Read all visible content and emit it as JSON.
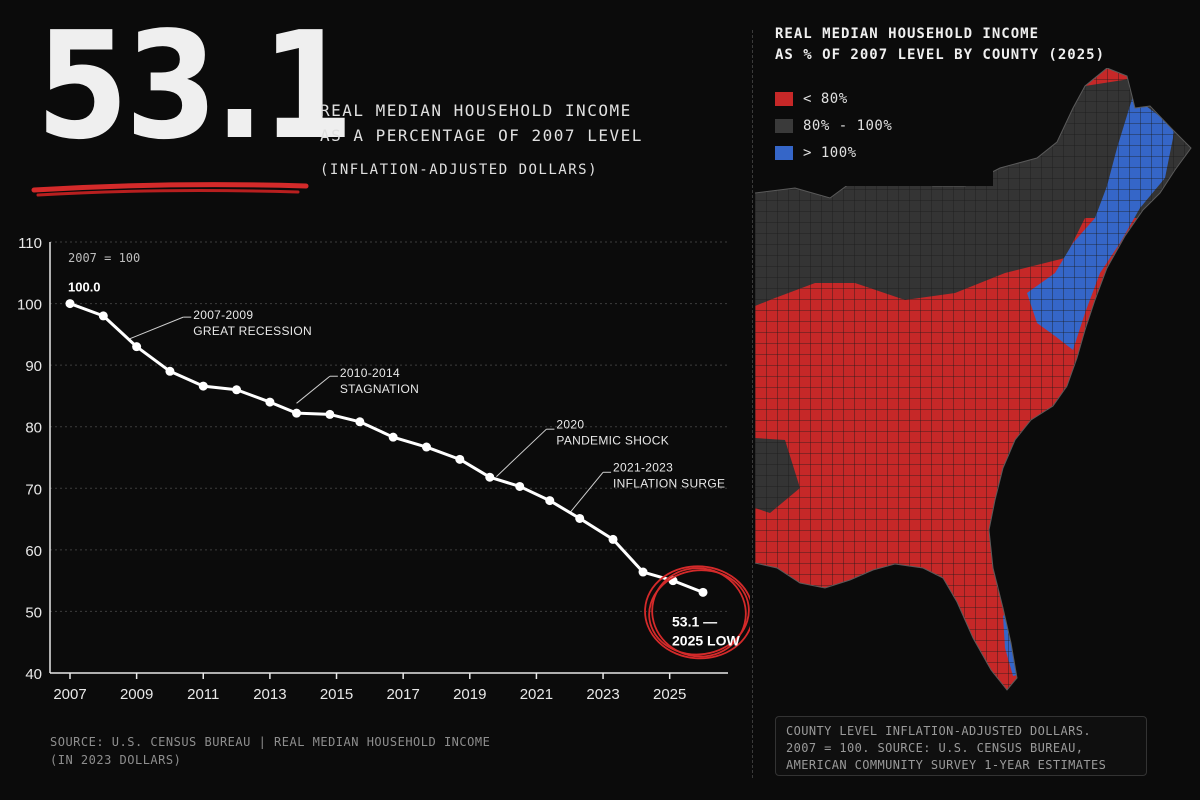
{
  "hero": {
    "value": "53.1",
    "headline_line1": "REAL MEDIAN HOUSEHOLD INCOME",
    "headline_line2": "AS A PERCENTAGE OF 2007 LEVEL",
    "subhead": "(INFLATION-ADJUSTED DOLLARS)"
  },
  "chart_data": {
    "type": "line",
    "title": "",
    "xlabel": "",
    "ylabel": "",
    "xlim": [
      2007,
      2026
    ],
    "ylim": [
      40,
      110
    ],
    "y_ticks": [
      40,
      50,
      60,
      70,
      80,
      90,
      100,
      110
    ],
    "x_ticks": [
      "2007",
      "2009",
      "2011",
      "2013",
      "2015",
      "2017",
      "2019",
      "2021",
      "2023",
      "2025"
    ],
    "baseline_note": "2007 = 100",
    "grid": true,
    "series": [
      {
        "x": [
          2007,
          2008,
          2009,
          2010,
          2011,
          2012,
          2013,
          2013.8,
          2014.8,
          2015.7,
          2016.7,
          2017.7,
          2018.7,
          2019.6,
          2020.5,
          2021.4,
          2022.3,
          2023.3,
          2024.2,
          2025.1,
          2026.0
        ],
        "values": [
          100.0,
          98.0,
          93.0,
          89.0,
          86.6,
          86.0,
          84.0,
          82.2,
          82.0,
          80.8,
          78.3,
          76.7,
          74.7,
          71.8,
          70.3,
          68.0,
          65.1,
          61.7,
          56.4,
          55.0,
          53.1
        ]
      }
    ],
    "data_labels": [
      {
        "text": "100.0"
      },
      {
        "text": "53.1 —"
      },
      {
        "text": "2025 LOW"
      }
    ],
    "annotations": [
      {
        "line1": "2007-2009",
        "line2": "GREAT RECESSION"
      },
      {
        "line1": "2010-2014",
        "line2": "STAGNATION"
      },
      {
        "line1": "2020",
        "line2": "PANDEMIC SHOCK"
      },
      {
        "line1": "2021-2023",
        "line2": "INFLATION SURGE"
      }
    ],
    "colors": {
      "line": "#ffffff",
      "highlight": "#d42a2a",
      "grid": "#3c3c3c"
    }
  },
  "source": {
    "line1": "SOURCE: U.S. CENSUS BUREAU  |  REAL MEDIAN HOUSEHOLD INCOME",
    "line2": "(IN 2023 DOLLARS)"
  },
  "map": {
    "title_line1": "REAL MEDIAN HOUSEHOLD INCOME",
    "title_line2": "AS % OF 2007 LEVEL BY COUNTY (2025)",
    "legend": [
      {
        "label": "< 80%",
        "color": "#c62828"
      },
      {
        "label": "80% - 100%",
        "color": "#3a3a3a"
      },
      {
        "label": "> 100%",
        "color": "#3566c8"
      }
    ],
    "note_line1": "COUNTY LEVEL INFLATION-ADJUSTED DOLLARS.",
    "note_line2": "2007 = 100. SOURCE: U.S. CENSUS BUREAU,",
    "note_line3": "AMERICAN COMMUNITY SURVEY 1-YEAR ESTIMATES"
  }
}
